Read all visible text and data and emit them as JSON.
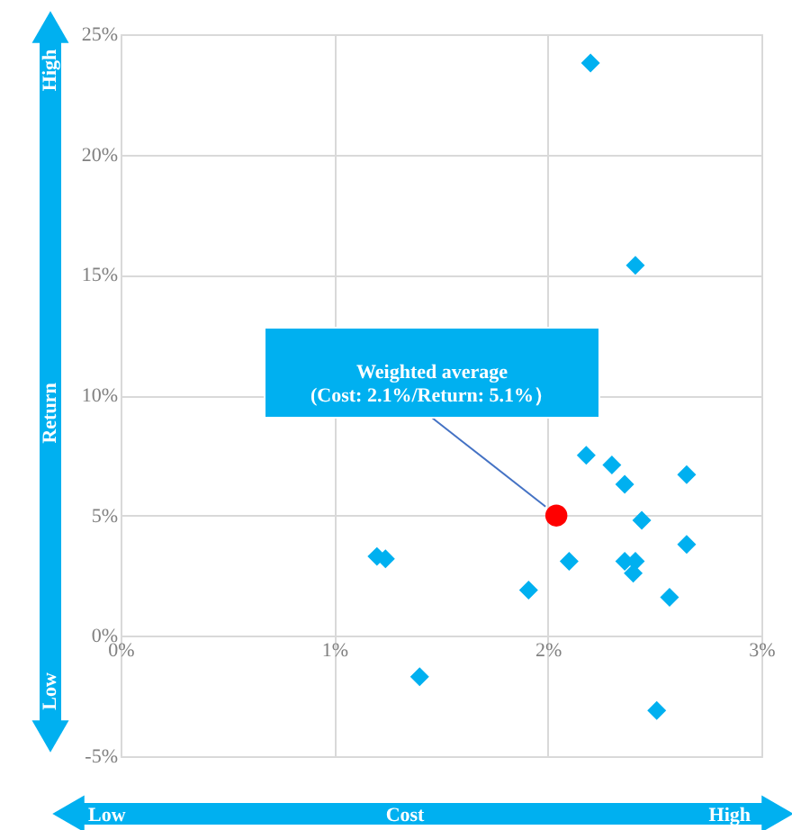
{
  "chart_data": {
    "type": "scatter",
    "xlabel": "Cost",
    "ylabel": "Return",
    "xlim": [
      0,
      3
    ],
    "xticks": [
      {
        "value": 0,
        "label": "0%"
      },
      {
        "value": 1,
        "label": "1%"
      },
      {
        "value": 2,
        "label": "2%"
      },
      {
        "value": 3,
        "label": "3%"
      }
    ],
    "ylim": [
      -5,
      25
    ],
    "yticks": [
      {
        "value": -5,
        "label": "-5%"
      },
      {
        "value": 0,
        "label": "0%"
      },
      {
        "value": 5,
        "label": "5%"
      },
      {
        "value": 10,
        "label": "10%"
      },
      {
        "value": 15,
        "label": "15%"
      },
      {
        "value": 20,
        "label": "20%"
      },
      {
        "value": 25,
        "label": "25%"
      }
    ],
    "grid": true,
    "legend": false,
    "series": [
      {
        "color": "#00b0f0",
        "marker": "diamond",
        "x": [
          2.2,
          2.41,
          2.18,
          2.3,
          2.36,
          2.65,
          2.44,
          2.65,
          1.2,
          1.24,
          2.1,
          2.36,
          2.41,
          2.4,
          1.91,
          2.57,
          1.4,
          2.51
        ],
        "values": [
          23.8,
          15.4,
          7.5,
          7.1,
          6.3,
          6.7,
          4.8,
          3.8,
          3.3,
          3.2,
          3.1,
          3.1,
          3.1,
          2.6,
          1.9,
          1.6,
          -1.7,
          -3.1
        ]
      },
      {
        "color": "#ff0000",
        "marker": "circle",
        "x": [
          2.04
        ],
        "values": [
          5.0
        ]
      }
    ],
    "annotations": [
      {
        "text": "Weighted average\n(Cost: 2.1%/Return: 5.1%）",
        "x": 2.04,
        "y": 5.0
      },
      "High",
      "Low",
      "Low",
      "High"
    ]
  }
}
